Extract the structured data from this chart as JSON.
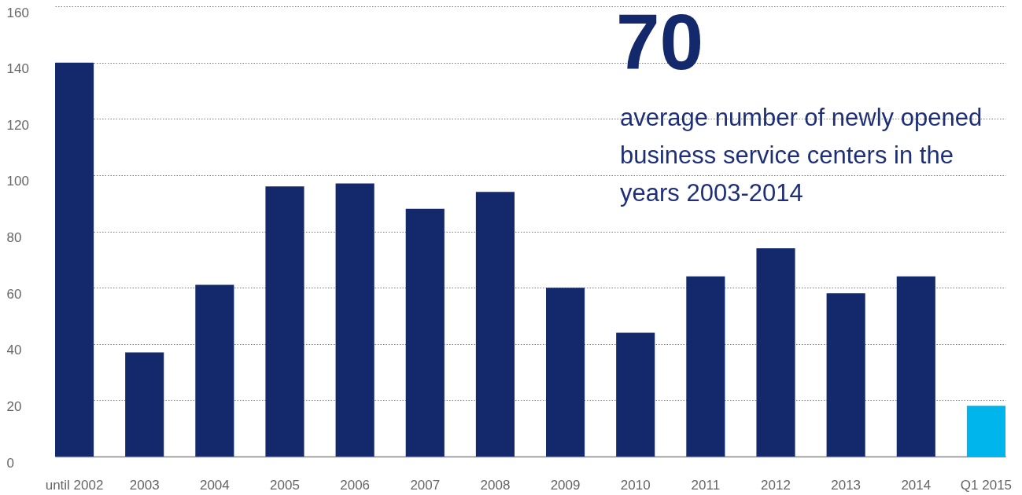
{
  "chart_data": {
    "type": "bar",
    "categories": [
      "until 2002",
      "2003",
      "2004",
      "2005",
      "2006",
      "2007",
      "2008",
      "2009",
      "2010",
      "2011",
      "2012",
      "2013",
      "2014",
      "Q1 2015"
    ],
    "values": [
      140,
      37,
      61,
      96,
      97,
      88,
      94,
      60,
      44,
      64,
      74,
      58,
      64,
      18
    ],
    "colors": [
      "#14296b",
      "#14296b",
      "#14296b",
      "#14296b",
      "#14296b",
      "#14296b",
      "#14296b",
      "#14296b",
      "#14296b",
      "#14296b",
      "#14296b",
      "#14296b",
      "#14296b",
      "#00b4ec"
    ],
    "ylim": [
      0,
      160
    ],
    "yticks": [
      0,
      20,
      40,
      60,
      80,
      100,
      120,
      140,
      160
    ],
    "grid": "y",
    "annotations": [
      "70",
      "average number of newly opened business service centers in the years 2003-2014"
    ]
  }
}
